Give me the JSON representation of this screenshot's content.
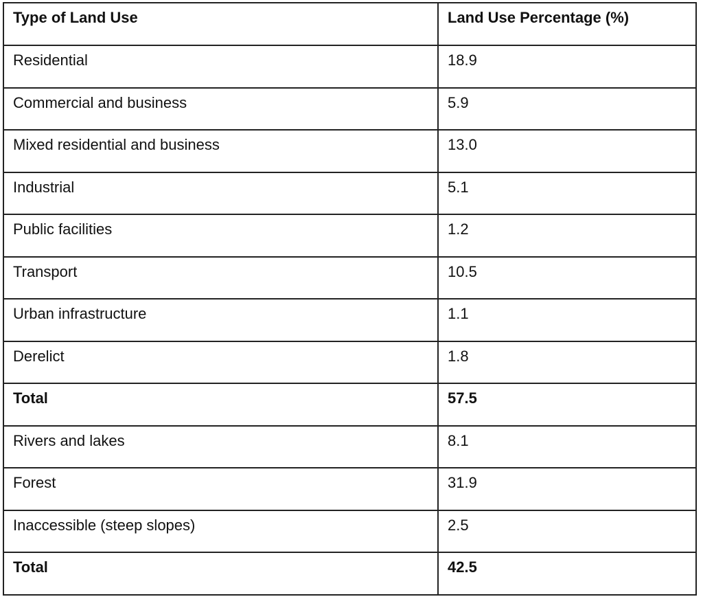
{
  "table": {
    "headers": [
      "Type of Land Use",
      "Land Use Percentage (%)"
    ],
    "rows": [
      {
        "type": "Residential",
        "pct": "18.9"
      },
      {
        "type": "Commercial and business",
        "pct": "5.9"
      },
      {
        "type": "Mixed residential and business",
        "pct": "13.0"
      },
      {
        "type": "Industrial",
        "pct": "5.1"
      },
      {
        "type": "Public facilities",
        "pct": "1.2"
      },
      {
        "type": "Transport",
        "pct": "10.5"
      },
      {
        "type": "Urban infrastructure",
        "pct": "1.1"
      },
      {
        "type": "Derelict",
        "pct": "1.8"
      },
      {
        "type": "Total",
        "pct": "57.5"
      },
      {
        "type": "Rivers and lakes",
        "pct": "8.1"
      },
      {
        "type": "Forest",
        "pct": "31.9"
      },
      {
        "type": "Inaccessible (steep slopes)",
        "pct": "2.5"
      },
      {
        "type": "Total",
        "pct": "42.5"
      }
    ]
  }
}
